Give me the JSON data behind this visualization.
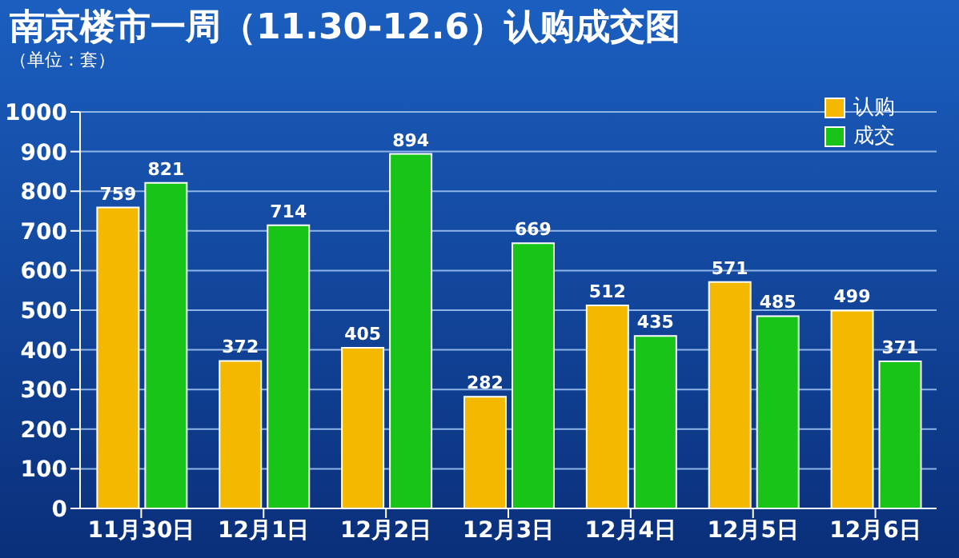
{
  "chart_data": {
    "type": "bar",
    "title": "南京楼市一周（11.30-12.6）认购成交图",
    "subtitle": "（单位：套）",
    "categories": [
      "11月30日",
      "12月1日",
      "12月2日",
      "12月3日",
      "12月4日",
      "12月5日",
      "12月6日"
    ],
    "series": [
      {
        "name": "认购",
        "color": "#f5b800",
        "values": [
          759,
          372,
          405,
          282,
          512,
          571,
          499
        ]
      },
      {
        "name": "成交",
        "color": "#19c419",
        "values": [
          821,
          714,
          894,
          669,
          435,
          485,
          371
        ]
      }
    ],
    "ylim": [
      0,
      1000
    ],
    "yticks": [
      0,
      100,
      200,
      300,
      400,
      500,
      600,
      700,
      800,
      900,
      1000
    ],
    "grid": "y",
    "legend": "top right",
    "data_labels": true
  }
}
